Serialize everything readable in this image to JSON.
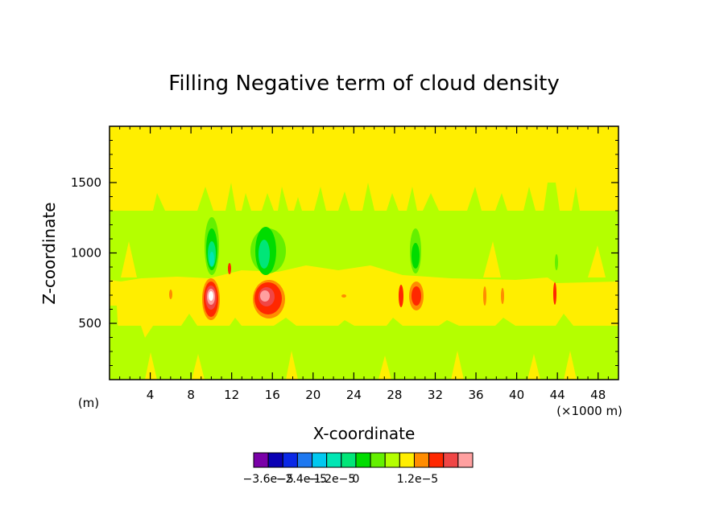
{
  "chart_data": {
    "type": "heatmap",
    "title": "Filling Negative term of cloud density",
    "xlabel": "X-coordinate",
    "ylabel": "Z-coordinate",
    "x_unit_left": "(m)",
    "x_unit_right": "(×1000 m)",
    "xlim": [
      0,
      50
    ],
    "ylim": [
      100,
      1900
    ],
    "x_ticks": [
      4,
      8,
      12,
      16,
      20,
      24,
      28,
      32,
      36,
      40,
      44,
      48
    ],
    "y_ticks": [
      500,
      1000,
      1500
    ],
    "x_tick_labels": [
      "4",
      "8",
      "12",
      "16",
      "20",
      "24",
      "28",
      "32",
      "36",
      "40",
      "44",
      "48"
    ],
    "y_tick_labels": [
      "500",
      "1000",
      "1500"
    ],
    "colorbar": {
      "colors": [
        "#7a00a8",
        "#0a00b4",
        "#0a28e6",
        "#1e78f0",
        "#00c8f0",
        "#00e6b4",
        "#00e678",
        "#00dc00",
        "#64f000",
        "#b4ff00",
        "#ffee00",
        "#ff8c00",
        "#ff2800",
        "#f04646",
        "#ffa0a0"
      ],
      "labels": [
        "−3.6e−5",
        "−2.4e−5",
        "−1.2e−5",
        "0",
        "1.2e−5"
      ]
    },
    "background_level": "0",
    "bands": [
      {
        "name": "green-band",
        "z_range": [
          800,
          1300
        ],
        "color": "#b4ff00"
      },
      {
        "name": "green-band-lower",
        "z_range": [
          100,
          500
        ],
        "color": "#b4ff00"
      }
    ],
    "features": [
      {
        "name": "negative-core",
        "x": 10.2,
        "z": 950,
        "color": "#00e6b4",
        "level": "-3.0e-5"
      },
      {
        "name": "negative-core",
        "x": 15.4,
        "z": 1000,
        "color": "#00e678",
        "level": "-2.4e-5"
      },
      {
        "name": "negative-core",
        "x": 30.2,
        "z": 1000,
        "color": "#00dc00",
        "level": "-1.8e-5"
      },
      {
        "name": "positive-core",
        "x": 10.0,
        "z": 690,
        "color": "#ffffff",
        "level": "1.8e-5"
      },
      {
        "name": "positive-core",
        "x": 15.6,
        "z": 690,
        "color": "#ffa0a0",
        "level": "1.5e-5"
      },
      {
        "name": "positive-core",
        "x": 30.2,
        "z": 690,
        "color": "#ff2800",
        "level": "0.9e-5"
      }
    ]
  }
}
